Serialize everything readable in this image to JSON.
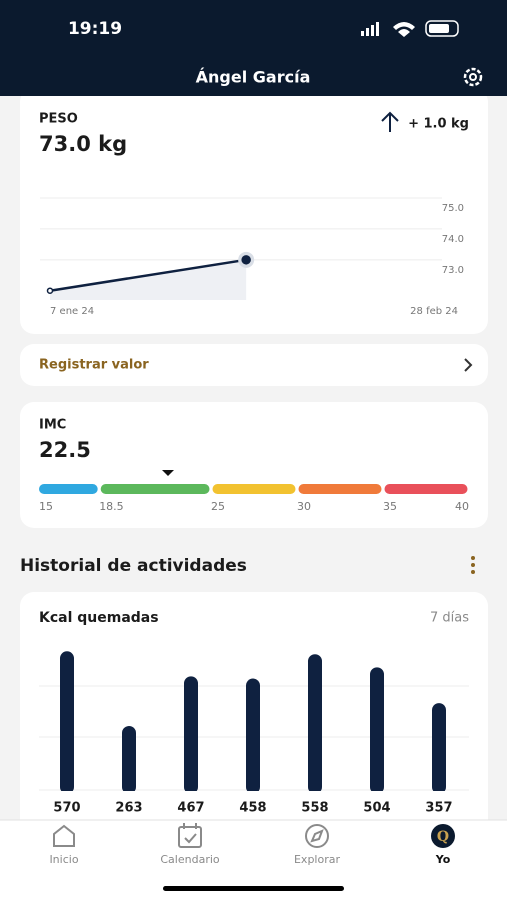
{
  "status_bar": {
    "time": "19:19"
  },
  "header": {
    "title": "Ángel García"
  },
  "weight_card": {
    "label": "PESO",
    "value": "73.0 kg",
    "change": "+ 1.0 kg",
    "chart_data": {
      "type": "line",
      "x": [
        "2024-01-07",
        "2024-02-01"
      ],
      "values": [
        72.0,
        73.0
      ],
      "color": "#0f2140",
      "xlim": [
        "2024-01-07",
        "2024-02-28"
      ],
      "xticks": [
        {
          "value": "2024-01-07",
          "label": "7 ene 24"
        },
        {
          "value": "2024-02-28",
          "label": "28 feb 24"
        }
      ],
      "ylim": [
        71.7,
        75.0
      ],
      "yticks": [
        {
          "value": 73,
          "label": "73.0"
        },
        {
          "value": 74,
          "label": "74.0"
        },
        {
          "value": 75,
          "label": "75.0"
        }
      ],
      "grid": true
    }
  },
  "register": {
    "label": "Registrar valor"
  },
  "bmi_card": {
    "label": "IMC",
    "value": "22.5",
    "chart_data": {
      "type": "scale",
      "marker": 22.5,
      "xlim": [
        15,
        40
      ],
      "xticks": [
        15,
        18.5,
        25,
        30,
        35,
        40
      ],
      "colors": [
        "#2fa8e0",
        "#5cb85c",
        "#f2c230",
        "#f07a3a",
        "#e9505a"
      ]
    }
  },
  "activity": {
    "title": "Historial de actividades",
    "card": {
      "title": "Kcal quemadas",
      "period": "7 días",
      "chart_data": {
        "type": "bar",
        "values": [
          570,
          263,
          467,
          458,
          558,
          504,
          357
        ],
        "color": "#0f2140",
        "ylim": [
          0,
          600
        ]
      }
    }
  },
  "tab_bar": {
    "tabs": [
      "Inicio",
      "Calendario",
      "Explorar",
      "Yo"
    ],
    "profile_icon": "Q"
  }
}
